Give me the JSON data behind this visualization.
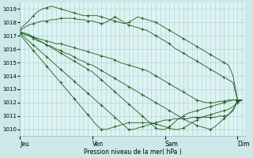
{
  "bg_color": "#cce8e8",
  "plot_bg_color": "#ddf2f2",
  "grid_color": "#aacfcf",
  "line_color": "#1a5c1a",
  "ylabel_text": "Pression niveau de la mer( hPa )",
  "x_ticks": [
    0,
    96,
    192,
    288
  ],
  "x_tick_labels": [
    "Jeu",
    "Ven",
    "Sam",
    "Dim"
  ],
  "ylim": [
    1009.5,
    1019.5
  ],
  "xlim": [
    0,
    298
  ],
  "yticks": [
    1010,
    1011,
    1012,
    1013,
    1014,
    1015,
    1016,
    1017,
    1018,
    1019
  ],
  "series": [
    {
      "x": [
        0,
        6,
        12,
        18,
        24,
        30,
        36,
        42,
        48,
        54,
        60,
        66,
        72,
        78,
        84,
        90,
        96,
        102,
        108,
        114,
        120,
        126,
        132,
        138,
        144,
        150,
        156,
        162,
        168,
        174,
        180,
        186,
        192,
        198,
        204,
        210,
        216,
        222,
        228,
        234,
        240,
        246,
        252,
        258,
        264,
        270,
        276,
        282,
        288,
        294
      ],
      "y": [
        1017.2,
        1017.1,
        1017.0,
        1016.9,
        1016.8,
        1016.7,
        1016.6,
        1016.5,
        1016.4,
        1016.4,
        1016.3,
        1016.2,
        1016.1,
        1016.0,
        1015.9,
        1015.8,
        1015.7,
        1015.6,
        1015.5,
        1015.4,
        1015.3,
        1015.2,
        1015.0,
        1014.9,
        1014.8,
        1014.7,
        1014.6,
        1014.5,
        1014.4,
        1014.2,
        1014.0,
        1013.8,
        1013.6,
        1013.4,
        1013.2,
        1013.0,
        1012.8,
        1012.6,
        1012.4,
        1012.2,
        1012.1,
        1012.0,
        1012.0,
        1012.0,
        1012.1,
        1012.1,
        1012.2,
        1012.2,
        1012.2,
        1012.2
      ]
    },
    {
      "x": [
        0,
        6,
        12,
        18,
        24,
        30,
        36,
        42,
        48,
        54,
        60,
        66,
        72,
        78,
        84,
        90,
        96,
        102,
        108,
        114,
        120,
        126,
        132,
        138,
        144,
        150,
        156,
        162,
        168,
        174,
        180,
        186,
        192,
        198,
        204,
        210,
        216,
        222,
        228,
        234,
        240,
        246,
        252,
        258,
        264,
        270,
        276,
        282,
        288,
        294
      ],
      "y": [
        1017.3,
        1017.1,
        1017.0,
        1016.8,
        1016.6,
        1016.5,
        1016.3,
        1016.2,
        1016.0,
        1015.9,
        1015.7,
        1015.6,
        1015.4,
        1015.2,
        1015.1,
        1014.9,
        1014.8,
        1014.6,
        1014.4,
        1014.2,
        1014.0,
        1013.8,
        1013.6,
        1013.4,
        1013.2,
        1013.0,
        1012.8,
        1012.6,
        1012.4,
        1012.2,
        1012.0,
        1011.8,
        1011.6,
        1011.4,
        1011.2,
        1011.0,
        1010.8,
        1010.6,
        1010.5,
        1010.3,
        1010.2,
        1010.1,
        1010.0,
        1010.2,
        1010.5,
        1010.8,
        1011.1,
        1011.4,
        1012.1,
        1012.2
      ]
    },
    {
      "x": [
        0,
        6,
        12,
        18,
        24,
        30,
        36,
        42,
        48,
        54,
        60,
        66,
        72,
        78,
        84,
        90,
        96,
        102,
        108,
        114,
        120,
        126,
        132,
        138,
        144,
        150,
        156,
        162,
        168,
        174,
        180,
        186,
        192,
        198,
        204,
        210,
        216,
        222,
        228,
        234,
        240,
        246,
        252,
        258,
        264,
        270,
        276,
        282,
        288,
        294
      ],
      "y": [
        1017.3,
        1017.2,
        1017.1,
        1016.9,
        1016.7,
        1016.5,
        1016.3,
        1016.1,
        1015.9,
        1015.7,
        1015.5,
        1015.3,
        1015.1,
        1014.9,
        1014.7,
        1014.5,
        1014.3,
        1014.0,
        1013.7,
        1013.4,
        1013.1,
        1012.8,
        1012.5,
        1012.2,
        1011.9,
        1011.6,
        1011.3,
        1011.0,
        1010.7,
        1010.4,
        1010.1,
        1010.0,
        1010.0,
        1010.2,
        1010.5,
        1010.8,
        1011.0,
        1011.2,
        1011.3,
        1011.4,
        1011.5,
        1011.6,
        1011.7,
        1011.8,
        1011.9,
        1012.0,
        1012.1,
        1012.2,
        1012.2,
        1012.2
      ]
    },
    {
      "x": [
        0,
        6,
        12,
        18,
        24,
        30,
        36,
        42,
        48,
        54,
        60,
        66,
        72,
        78,
        84,
        90,
        96,
        102,
        108,
        114,
        120,
        126,
        132,
        138,
        144,
        150,
        156,
        162,
        168,
        174,
        180,
        186,
        192,
        198,
        204,
        210,
        216,
        222,
        228,
        234,
        240,
        246,
        252,
        258,
        264,
        270,
        276,
        282,
        288,
        294
      ],
      "y": [
        1017.4,
        1017.6,
        1017.8,
        1017.9,
        1018.0,
        1018.1,
        1018.1,
        1018.2,
        1018.2,
        1018.3,
        1018.3,
        1018.3,
        1018.3,
        1018.2,
        1018.2,
        1018.1,
        1018.1,
        1018.0,
        1017.9,
        1018.0,
        1018.2,
        1018.4,
        1018.2,
        1018.0,
        1017.8,
        1017.7,
        1017.6,
        1017.5,
        1017.4,
        1017.2,
        1017.0,
        1016.8,
        1016.6,
        1016.4,
        1016.1,
        1015.9,
        1015.7,
        1015.5,
        1015.3,
        1015.1,
        1014.9,
        1014.7,
        1014.5,
        1014.3,
        1014.1,
        1013.9,
        1013.7,
        1013.5,
        1012.2,
        1012.2
      ]
    },
    {
      "x": [
        0,
        6,
        12,
        18,
        24,
        30,
        36,
        42,
        48,
        54,
        60,
        66,
        72,
        78,
        84,
        90,
        96,
        102,
        108,
        114,
        120,
        126,
        132,
        138,
        144,
        150,
        156,
        162,
        168,
        174,
        180,
        186,
        192,
        198,
        204,
        210,
        216,
        222,
        228,
        234,
        240,
        246,
        252,
        258,
        264,
        270,
        276,
        282,
        288,
        294
      ],
      "y": [
        1017.5,
        1017.8,
        1018.1,
        1018.5,
        1018.8,
        1019.0,
        1019.1,
        1019.2,
        1019.1,
        1019.0,
        1018.9,
        1018.8,
        1018.7,
        1018.6,
        1018.5,
        1018.5,
        1018.5,
        1018.5,
        1018.4,
        1018.3,
        1018.2,
        1018.1,
        1018.0,
        1017.9,
        1018.0,
        1018.2,
        1018.4,
        1018.3,
        1018.2,
        1018.1,
        1018.0,
        1017.8,
        1017.6,
        1017.4,
        1017.2,
        1017.0,
        1016.8,
        1016.6,
        1016.4,
        1016.2,
        1016.0,
        1015.8,
        1015.6,
        1015.4,
        1015.2,
        1015.0,
        1014.8,
        1014.0,
        1012.2,
        1012.2
      ]
    },
    {
      "x": [
        0,
        6,
        12,
        18,
        24,
        30,
        36,
        42,
        48,
        54,
        60,
        66,
        72,
        78,
        84,
        90,
        96,
        102,
        108,
        114,
        120,
        126,
        132,
        138,
        144,
        150,
        156,
        162,
        168,
        174,
        180,
        186,
        192,
        198,
        204,
        210,
        216,
        222,
        228,
        234,
        240,
        246,
        252,
        258,
        264,
        270,
        276,
        282,
        288,
        294
      ],
      "y": [
        1017.2,
        1016.9,
        1016.6,
        1016.3,
        1016.0,
        1015.7,
        1015.4,
        1015.1,
        1014.8,
        1014.5,
        1014.2,
        1013.9,
        1013.6,
        1013.3,
        1013.0,
        1012.7,
        1012.4,
        1012.1,
        1011.8,
        1011.5,
        1011.2,
        1010.9,
        1010.6,
        1010.3,
        1010.0,
        1010.0,
        1010.1,
        1010.2,
        1010.3,
        1010.4,
        1010.5,
        1010.6,
        1010.7,
        1010.7,
        1010.8,
        1010.8,
        1010.8,
        1010.8,
        1010.9,
        1010.9,
        1010.9,
        1010.9,
        1010.9,
        1010.9,
        1011.0,
        1011.0,
        1011.1,
        1011.5,
        1012.1,
        1012.2
      ]
    },
    {
      "x": [
        0,
        6,
        12,
        18,
        24,
        30,
        36,
        42,
        48,
        54,
        60,
        66,
        72,
        78,
        84,
        90,
        96,
        102,
        108,
        114,
        120,
        126,
        132,
        138,
        144,
        150,
        156,
        162,
        168,
        174,
        180,
        186,
        192,
        198,
        204,
        210,
        216,
        222,
        228,
        234,
        240,
        246,
        252,
        258,
        264,
        270,
        276,
        282,
        288,
        294
      ],
      "y": [
        1017.1,
        1016.7,
        1016.3,
        1015.9,
        1015.5,
        1015.1,
        1014.7,
        1014.3,
        1013.9,
        1013.5,
        1013.1,
        1012.7,
        1012.3,
        1011.9,
        1011.5,
        1011.1,
        1010.7,
        1010.3,
        1010.0,
        1010.0,
        1010.1,
        1010.2,
        1010.3,
        1010.4,
        1010.5,
        1010.5,
        1010.5,
        1010.5,
        1010.5,
        1010.5,
        1010.4,
        1010.3,
        1010.2,
        1010.1,
        1010.0,
        1010.0,
        1010.1,
        1010.3,
        1010.5,
        1010.7,
        1010.9,
        1011.0,
        1011.1,
        1011.2,
        1011.3,
        1011.4,
        1011.5,
        1011.7,
        1012.0,
        1012.2
      ]
    }
  ]
}
